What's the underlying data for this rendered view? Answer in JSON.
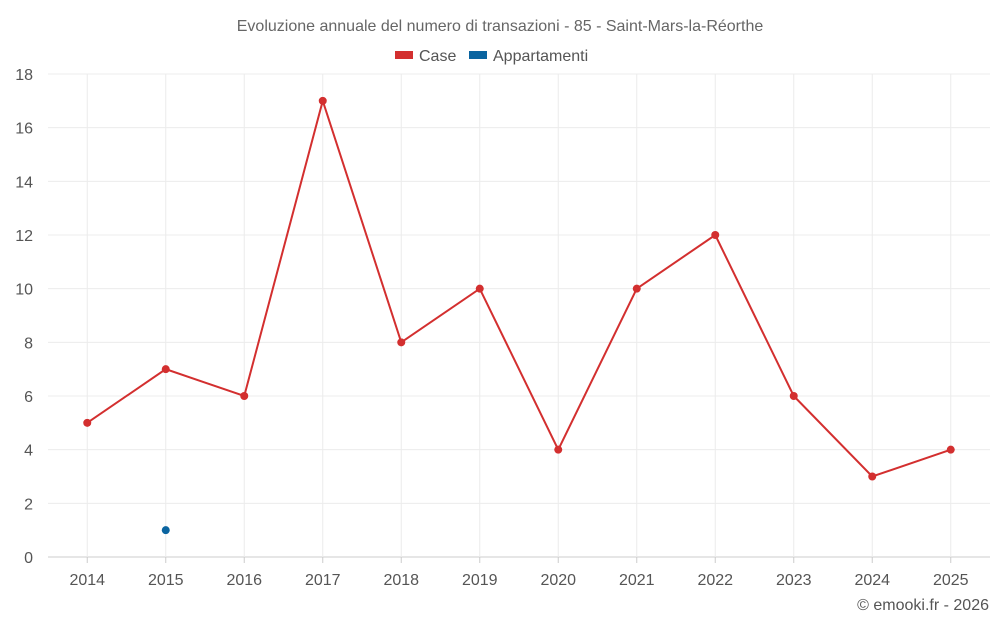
{
  "chart_data": {
    "type": "line",
    "title": "Evoluzione annuale del numero di transazioni - 85 - Saint-Mars-la-Réorthe",
    "categories": [
      "2014",
      "2015",
      "2016",
      "2017",
      "2018",
      "2019",
      "2020",
      "2021",
      "2022",
      "2023",
      "2024",
      "2025"
    ],
    "series": [
      {
        "name": "Case",
        "color": "#d32f2f",
        "values": [
          5,
          7,
          6,
          17,
          8,
          10,
          4,
          10,
          12,
          6,
          3,
          4
        ]
      },
      {
        "name": "Appartamenti",
        "color": "#0a64a0",
        "values": [
          null,
          1,
          null,
          null,
          null,
          null,
          null,
          null,
          null,
          null,
          null,
          null
        ]
      }
    ],
    "ylim": [
      0,
      18
    ],
    "yticks": [
      "0",
      "2",
      "4",
      "6",
      "8",
      "10",
      "12",
      "14",
      "16",
      "18"
    ],
    "xlabel": "",
    "ylabel": "",
    "legend": "top-center",
    "grid": true
  },
  "credit": "© emooki.fr - 2026"
}
